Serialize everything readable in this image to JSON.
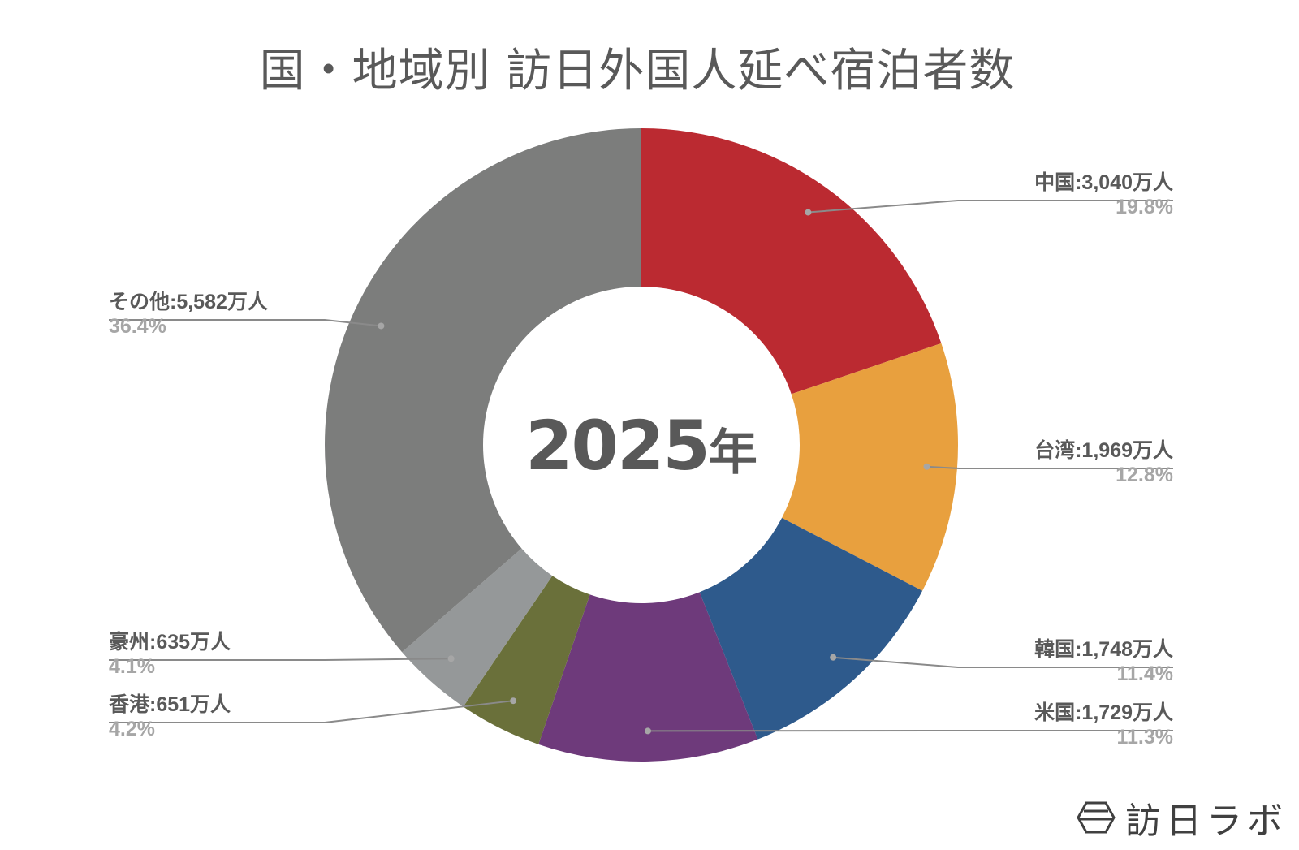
{
  "title": "国・地域別 訪日外国人延べ宿泊者数",
  "center_label": {
    "year": "2025",
    "suffix": "年"
  },
  "logo": {
    "text": "訪日ラボ",
    "icon": "hexagon-logo-icon"
  },
  "chart_data": {
    "type": "pie",
    "variant": "donut",
    "title": "国・地域別 訪日外国人延べ宿泊者数",
    "center_text": "2025年",
    "unit": "万人",
    "start_angle": "12 o'clock, clockwise",
    "legend_position": "outside labels with leader lines",
    "slices": [
      {
        "name": "中国",
        "value": 3040,
        "percent": 19.8,
        "color": "#bb2a31",
        "label": "中国:3,040万人",
        "pct_label": "19.8%",
        "side": "right"
      },
      {
        "name": "台湾",
        "value": 1969,
        "percent": 12.8,
        "color": "#e8a03e",
        "label": "台湾:1,969万人",
        "pct_label": "12.8%",
        "side": "right"
      },
      {
        "name": "韓国",
        "value": 1748,
        "percent": 11.4,
        "color": "#2e5a8c",
        "label": "韓国:1,748万人",
        "pct_label": "11.4%",
        "side": "right"
      },
      {
        "name": "米国",
        "value": 1729,
        "percent": 11.3,
        "color": "#6e3a7b",
        "label": "米国:1,729万人",
        "pct_label": "11.3%",
        "side": "right"
      },
      {
        "name": "香港",
        "value": 651,
        "percent": 4.2,
        "color": "#6a703a",
        "label": "香港:651万人",
        "pct_label": "4.2%",
        "side": "left"
      },
      {
        "name": "豪州",
        "value": 635,
        "percent": 4.1,
        "color": "#959899",
        "label": "豪州:635万人",
        "pct_label": "4.1%",
        "side": "left"
      },
      {
        "name": "その他",
        "value": 5582,
        "percent": 36.4,
        "color": "#7c7d7c",
        "label": "その他:5,582万人",
        "pct_label": "36.4%",
        "side": "left"
      }
    ]
  }
}
